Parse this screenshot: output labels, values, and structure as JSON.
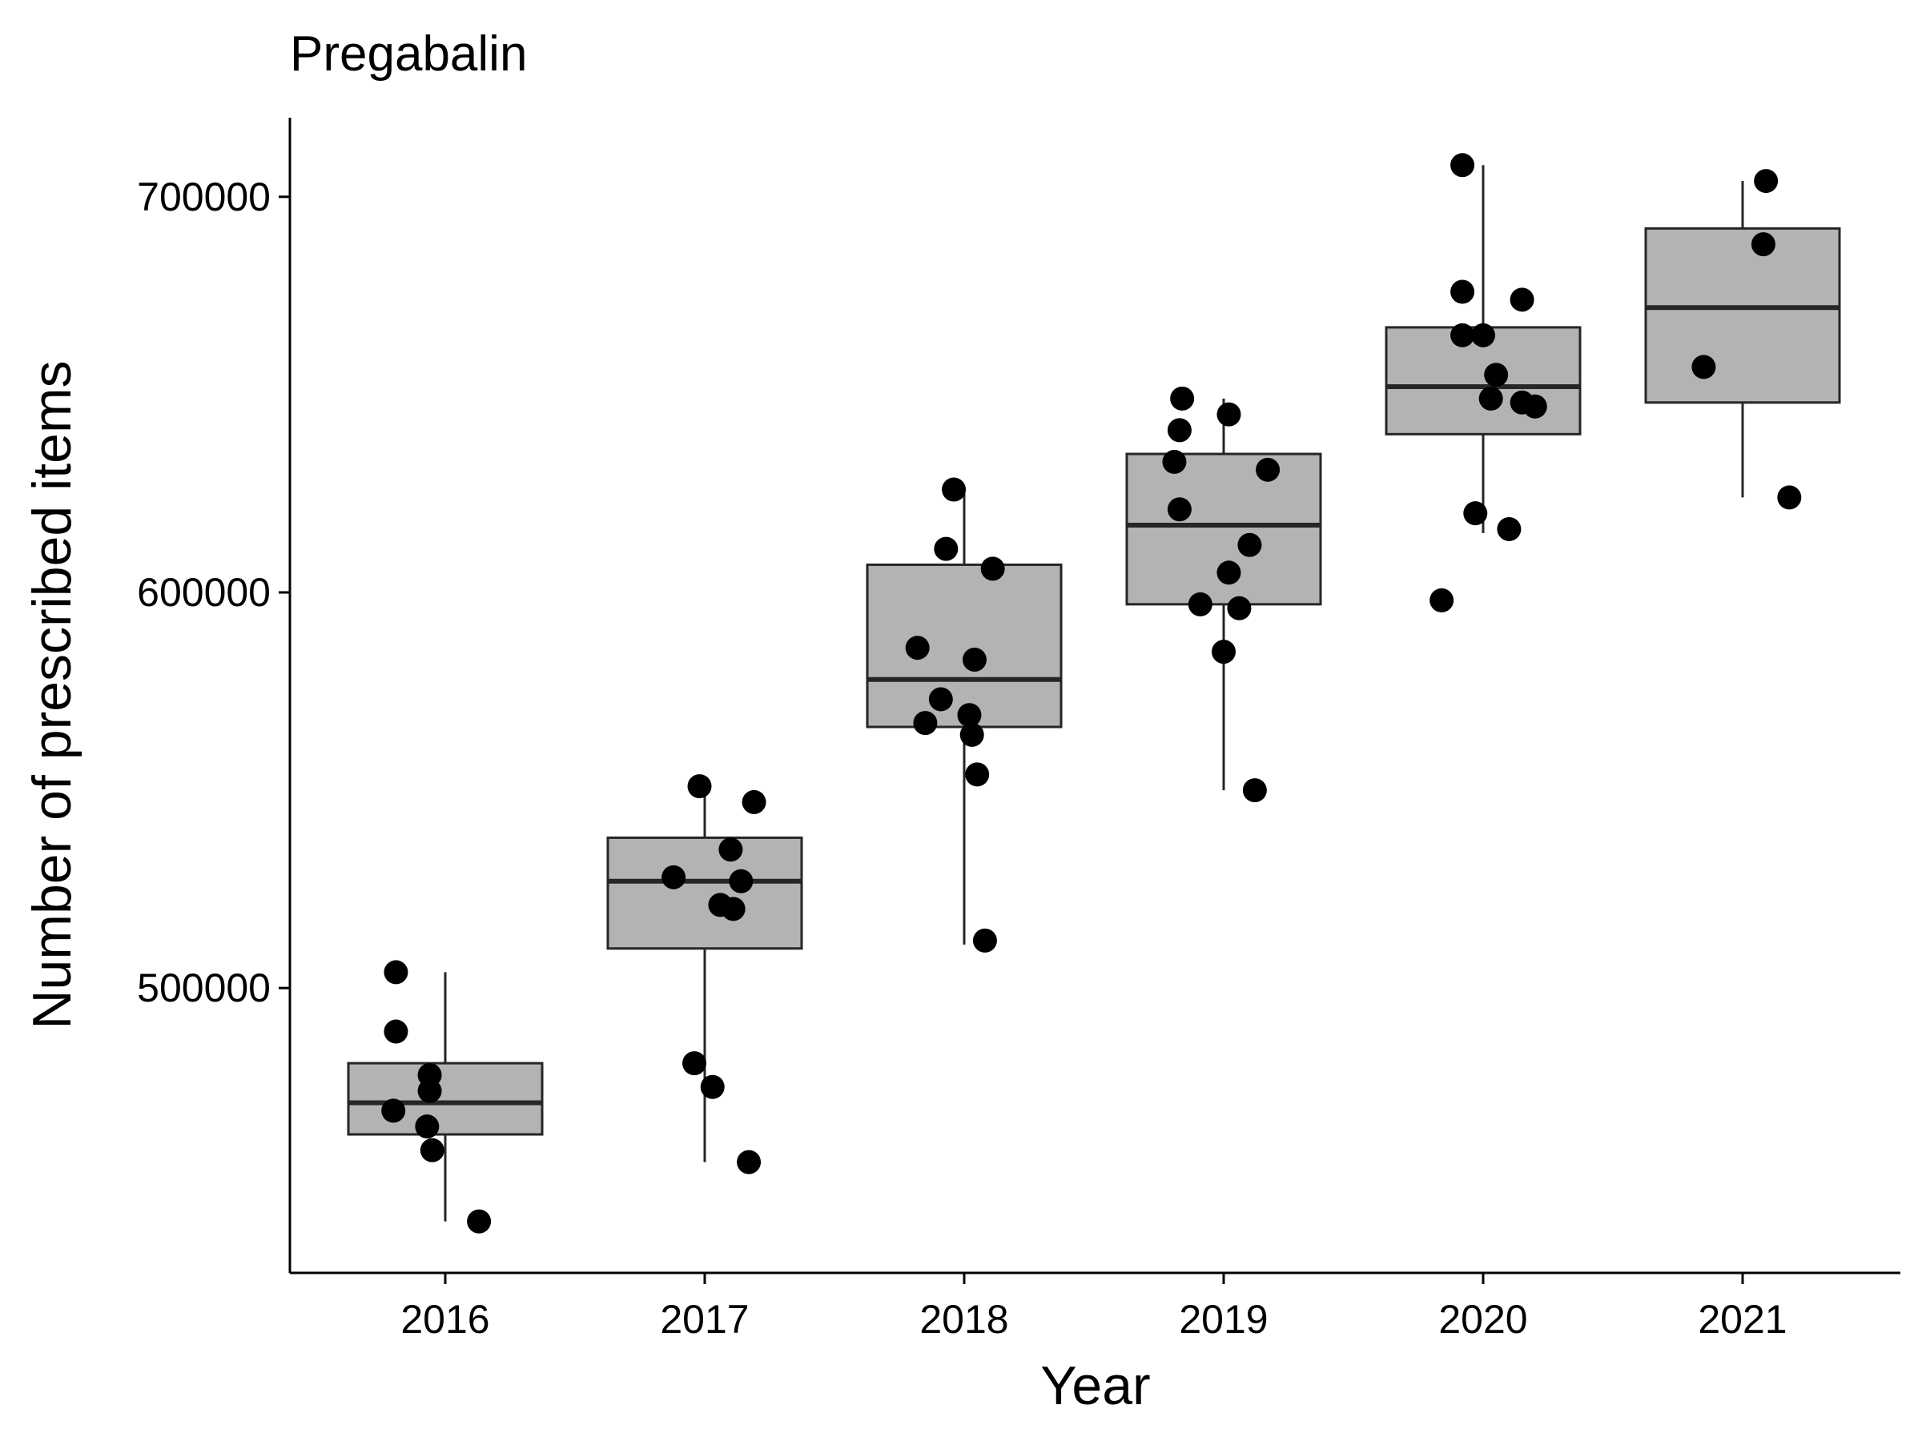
{
  "chart_data": {
    "type": "box",
    "title": "Pregabalin",
    "xlabel": "Year",
    "ylabel": "Number of prescribed items",
    "ylim": [
      428000,
      720000
    ],
    "y_ticks": [
      500000,
      600000,
      700000
    ],
    "y_tick_labels": [
      "500000",
      "600000",
      "700000"
    ],
    "grid": false,
    "categories": [
      "2016",
      "2017",
      "2018",
      "2019",
      "2020",
      "2021"
    ],
    "boxes": [
      {
        "year": "2016",
        "min": 441000,
        "q1": 463000,
        "median": 471000,
        "q3": 481000,
        "max": 504000
      },
      {
        "year": "2017",
        "min": 456000,
        "q1": 510000,
        "median": 527000,
        "q3": 538000,
        "max": 551000
      },
      {
        "year": "2018",
        "min": 511000,
        "q1": 566000,
        "median": 578000,
        "q3": 607000,
        "max": 626000
      },
      {
        "year": "2019",
        "min": 550000,
        "q1": 597000,
        "median": 617000,
        "q3": 635000,
        "max": 649000
      },
      {
        "year": "2020",
        "min": 615000,
        "q1": 640000,
        "median": 652000,
        "q3": 667000,
        "max": 708000
      },
      {
        "year": "2021",
        "min": 624000,
        "q1": 648000,
        "median": 672000,
        "q3": 692000,
        "max": 704000
      }
    ],
    "points": [
      {
        "year": "2016",
        "jitter": -0.19,
        "value": 504000
      },
      {
        "year": "2016",
        "jitter": -0.19,
        "value": 489000
      },
      {
        "year": "2016",
        "jitter": -0.06,
        "value": 478000
      },
      {
        "year": "2016",
        "jitter": -0.06,
        "value": 474000
      },
      {
        "year": "2016",
        "jitter": -0.2,
        "value": 469000
      },
      {
        "year": "2016",
        "jitter": -0.07,
        "value": 465000
      },
      {
        "year": "2016",
        "jitter": -0.05,
        "value": 459000
      },
      {
        "year": "2016",
        "jitter": 0.13,
        "value": 441000
      },
      {
        "year": "2017",
        "jitter": -0.02,
        "value": 551000
      },
      {
        "year": "2017",
        "jitter": 0.19,
        "value": 547000
      },
      {
        "year": "2017",
        "jitter": 0.1,
        "value": 535000
      },
      {
        "year": "2017",
        "jitter": -0.12,
        "value": 528000
      },
      {
        "year": "2017",
        "jitter": 0.14,
        "value": 527000
      },
      {
        "year": "2017",
        "jitter": 0.06,
        "value": 521000
      },
      {
        "year": "2017",
        "jitter": 0.11,
        "value": 520000
      },
      {
        "year": "2017",
        "jitter": -0.04,
        "value": 481000
      },
      {
        "year": "2017",
        "jitter": 0.03,
        "value": 475000
      },
      {
        "year": "2017",
        "jitter": 0.17,
        "value": 456000
      },
      {
        "year": "2018",
        "jitter": -0.04,
        "value": 626000
      },
      {
        "year": "2018",
        "jitter": -0.07,
        "value": 611000
      },
      {
        "year": "2018",
        "jitter": 0.11,
        "value": 606000
      },
      {
        "year": "2018",
        "jitter": -0.18,
        "value": 586000
      },
      {
        "year": "2018",
        "jitter": 0.04,
        "value": 583000
      },
      {
        "year": "2018",
        "jitter": -0.09,
        "value": 573000
      },
      {
        "year": "2018",
        "jitter": 0.02,
        "value": 569000
      },
      {
        "year": "2018",
        "jitter": -0.15,
        "value": 567000
      },
      {
        "year": "2018",
        "jitter": 0.03,
        "value": 564000
      },
      {
        "year": "2018",
        "jitter": 0.05,
        "value": 554000
      },
      {
        "year": "2018",
        "jitter": 0.08,
        "value": 512000
      },
      {
        "year": "2019",
        "jitter": -0.16,
        "value": 649000
      },
      {
        "year": "2019",
        "jitter": -0.17,
        "value": 641000
      },
      {
        "year": "2019",
        "jitter": 0.02,
        "value": 645000
      },
      {
        "year": "2019",
        "jitter": -0.19,
        "value": 633000
      },
      {
        "year": "2019",
        "jitter": 0.17,
        "value": 631000
      },
      {
        "year": "2019",
        "jitter": -0.17,
        "value": 621000
      },
      {
        "year": "2019",
        "jitter": 0.1,
        "value": 612000
      },
      {
        "year": "2019",
        "jitter": 0.02,
        "value": 605000
      },
      {
        "year": "2019",
        "jitter": -0.09,
        "value": 597000
      },
      {
        "year": "2019",
        "jitter": 0.06,
        "value": 596000
      },
      {
        "year": "2019",
        "jitter": 0.0,
        "value": 585000
      },
      {
        "year": "2019",
        "jitter": 0.12,
        "value": 550000
      },
      {
        "year": "2020",
        "jitter": -0.08,
        "value": 708000
      },
      {
        "year": "2020",
        "jitter": -0.08,
        "value": 676000
      },
      {
        "year": "2020",
        "jitter": 0.15,
        "value": 674000
      },
      {
        "year": "2020",
        "jitter": -0.08,
        "value": 665000
      },
      {
        "year": "2020",
        "jitter": 0.0,
        "value": 665000
      },
      {
        "year": "2020",
        "jitter": 0.05,
        "value": 655000
      },
      {
        "year": "2020",
        "jitter": 0.03,
        "value": 649000
      },
      {
        "year": "2020",
        "jitter": 0.15,
        "value": 648000
      },
      {
        "year": "2020",
        "jitter": 0.2,
        "value": 647000
      },
      {
        "year": "2020",
        "jitter": -0.03,
        "value": 620000
      },
      {
        "year": "2020",
        "jitter": 0.1,
        "value": 616000
      },
      {
        "year": "2020",
        "jitter": -0.16,
        "value": 598000
      },
      {
        "year": "2021",
        "jitter": 0.09,
        "value": 704000
      },
      {
        "year": "2021",
        "jitter": 0.08,
        "value": 688000
      },
      {
        "year": "2021",
        "jitter": -0.15,
        "value": 657000
      },
      {
        "year": "2021",
        "jitter": 0.18,
        "value": 624000
      }
    ],
    "colors": {
      "box_fill": "#b3b3b3",
      "box_line": "#262626",
      "point": "#000000"
    }
  }
}
